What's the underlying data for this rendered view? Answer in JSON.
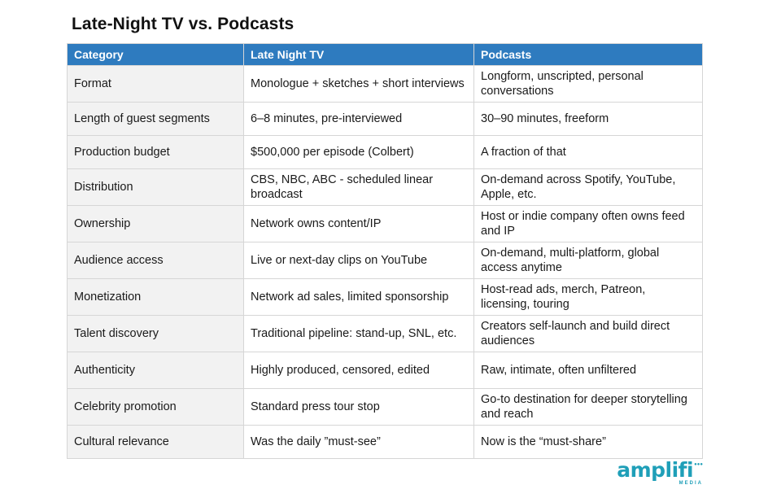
{
  "title": "Late-Night TV vs. Podcasts",
  "table": {
    "headers": [
      "Category",
      "Late Night TV",
      "Podcasts"
    ],
    "rows": [
      [
        "Format",
        "Monologue + sketches + short interviews",
        "Longform, unscripted, personal conversations"
      ],
      [
        "Length of guest segments",
        "6–8 minutes, pre-interviewed",
        "30–90 minutes, freeform"
      ],
      [
        "Production budget",
        "$500,000 per episode (Colbert)",
        "A fraction of that"
      ],
      [
        "Distribution",
        "CBS, NBC, ABC - scheduled linear broadcast",
        "On-demand across Spotify, YouTube, Apple, etc."
      ],
      [
        "Ownership",
        "Network owns content/IP",
        "Host or indie company often owns feed and IP"
      ],
      [
        "Audience access",
        "Live or next-day clips on YouTube",
        "On-demand, multi-platform, global access anytime"
      ],
      [
        "Monetization",
        "Network ad sales, limited sponsorship",
        "Host-read ads, merch, Patreon, licensing, touring"
      ],
      [
        "Talent discovery",
        "Traditional pipeline: stand-up, SNL, etc.",
        "Creators self-launch and build direct audiences"
      ],
      [
        "Authenticity",
        "Highly produced, censored, edited",
        "Raw, intimate, often unfiltered"
      ],
      [
        "Celebrity promotion",
        "Standard press tour stop",
        "Go-to destination for deeper storytelling and reach"
      ],
      [
        "Cultural relevance",
        "Was the daily ”must-see”",
        "Now is the “must-share”"
      ]
    ]
  },
  "logo": {
    "word": "amplifi",
    "sub": "MEDIA",
    "color": "#1f9fb8"
  },
  "colors": {
    "header_bg": "#2e7bbf",
    "category_bg": "#f2f2f2",
    "border": "#d6d6d6"
  }
}
